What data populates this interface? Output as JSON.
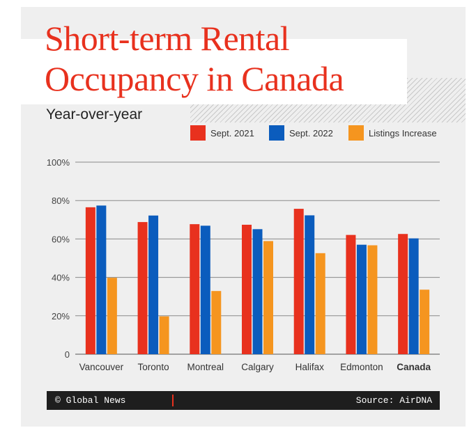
{
  "title": {
    "line1": "Short-term Rental",
    "line2": "Occupancy in Canada"
  },
  "subtitle": "Year-over-year",
  "colors": {
    "series_0": "#e8311e",
    "series_1": "#0b5cbd",
    "series_2": "#f5951f",
    "title": "#e8311e"
  },
  "chart_data": {
    "type": "bar",
    "title": "Short-term Rental Occupancy in Canada",
    "subtitle": "Year-over-year",
    "xlabel": "",
    "ylabel": "",
    "ylim": [
      0,
      100
    ],
    "yticks": [
      0,
      20,
      40,
      60,
      80,
      100
    ],
    "ytick_labels": [
      "0",
      "20%",
      "40%",
      "60%",
      "80%",
      "100%"
    ],
    "grid": true,
    "legend_position": "top-right",
    "categories": [
      "Vancouver",
      "Toronto",
      "Montreal",
      "Calgary",
      "Halifax",
      "Edmonton",
      "Canada"
    ],
    "series": [
      {
        "name": "Sept. 2021",
        "values": [
          76.5,
          68.8,
          67.7,
          67.4,
          75.7,
          62.1,
          62.6
        ]
      },
      {
        "name": "Sept. 2022",
        "values": [
          77.4,
          72.2,
          66.9,
          65.1,
          72.3,
          57.0,
          60.3
        ]
      },
      {
        "name": "Listings Increase",
        "values": [
          39.8,
          19.7,
          32.9,
          58.9,
          52.6,
          56.7,
          33.6
        ]
      }
    ]
  },
  "footer": {
    "credit": "© Global News",
    "source": "Source: AirDNA"
  }
}
